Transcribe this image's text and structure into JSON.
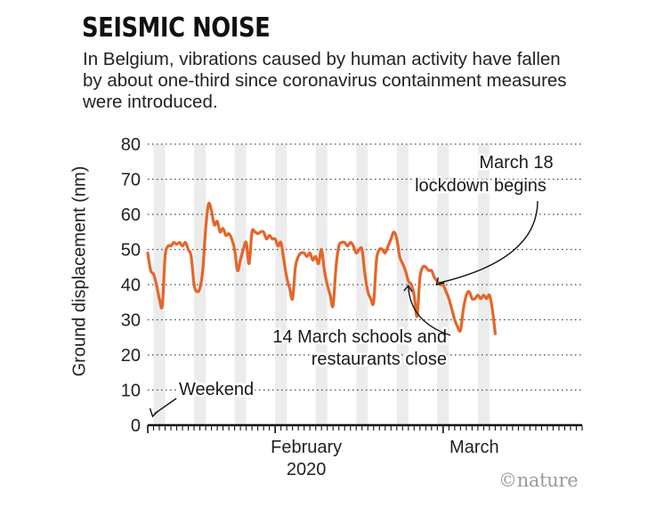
{
  "chart_data": {
    "type": "line",
    "title": "SEISMIC NOISE",
    "subtitle": "In Belgium, vibrations caused by human activity have fallen by about one-third since coronavirus containment measures were introduced.",
    "ylabel": "Ground displacement (nm)",
    "xlabel": "",
    "ylim": [
      0,
      80
    ],
    "yticks": [
      "0",
      "10",
      "20",
      "30",
      "40",
      "50",
      "60",
      "70",
      "80"
    ],
    "xlim": [
      "2020-01-10",
      "2020-03-25"
    ],
    "x_tick_labels": [
      {
        "date": "2020-02-01",
        "label": "February",
        "label2": "2020"
      },
      {
        "date": "2020-03-01",
        "label": "March"
      }
    ],
    "grid": "horizontal dotted",
    "series": [
      {
        "color": "#e4662a",
        "points": [
          [
            "2020-01-10",
            49
          ],
          [
            "2020-01-10T12",
            44
          ],
          [
            "2020-01-11",
            43
          ],
          [
            "2020-01-11T12",
            40
          ],
          [
            "2020-01-12",
            36
          ],
          [
            "2020-01-12T12",
            34
          ],
          [
            "2020-01-13",
            48
          ],
          [
            "2020-01-13T12",
            51
          ],
          [
            "2020-01-14",
            51
          ],
          [
            "2020-01-14T12",
            52
          ],
          [
            "2020-01-15",
            51.5
          ],
          [
            "2020-01-15T12",
            52
          ],
          [
            "2020-01-16",
            51
          ],
          [
            "2020-01-16T12",
            52
          ],
          [
            "2020-01-17",
            50
          ],
          [
            "2020-01-17T12",
            48
          ],
          [
            "2020-01-18",
            40
          ],
          [
            "2020-01-18T12",
            38
          ],
          [
            "2020-01-19",
            39
          ],
          [
            "2020-01-19T12",
            44
          ],
          [
            "2020-01-20",
            56
          ],
          [
            "2020-01-20T12",
            63
          ],
          [
            "2020-01-21",
            61
          ],
          [
            "2020-01-21T12",
            57
          ],
          [
            "2020-01-22",
            58
          ],
          [
            "2020-01-22T12",
            55
          ],
          [
            "2020-01-23",
            56
          ],
          [
            "2020-01-23T12",
            54
          ],
          [
            "2020-01-24",
            54.5
          ],
          [
            "2020-01-24T12",
            53
          ],
          [
            "2020-01-25",
            50
          ],
          [
            "2020-01-25T12",
            44
          ],
          [
            "2020-01-26",
            47
          ],
          [
            "2020-01-26T12",
            50
          ],
          [
            "2020-01-27",
            52
          ],
          [
            "2020-01-27T12",
            46
          ],
          [
            "2020-01-28",
            55
          ],
          [
            "2020-01-28T12",
            55
          ],
          [
            "2020-01-29",
            54.5
          ],
          [
            "2020-01-29T12",
            55
          ],
          [
            "2020-01-30",
            55
          ],
          [
            "2020-01-30T12",
            53
          ],
          [
            "2020-01-31",
            54
          ],
          [
            "2020-01-31T12",
            53
          ],
          [
            "2020-02-01",
            53
          ],
          [
            "2020-02-01T12",
            51
          ],
          [
            "2020-02-02",
            52
          ],
          [
            "2020-02-02T12",
            47
          ],
          [
            "2020-02-03",
            42
          ],
          [
            "2020-02-03T12",
            39
          ],
          [
            "2020-02-04",
            36
          ],
          [
            "2020-02-04T12",
            45
          ],
          [
            "2020-02-05",
            48
          ],
          [
            "2020-02-05T12",
            49
          ],
          [
            "2020-02-06",
            49
          ],
          [
            "2020-02-06T12",
            48
          ],
          [
            "2020-02-07",
            49
          ],
          [
            "2020-02-07T12",
            47
          ],
          [
            "2020-02-08",
            48
          ],
          [
            "2020-02-08T12",
            46
          ],
          [
            "2020-02-09",
            50
          ],
          [
            "2020-02-09T12",
            44
          ],
          [
            "2020-02-10",
            40
          ],
          [
            "2020-02-10T12",
            37
          ],
          [
            "2020-02-11",
            34
          ],
          [
            "2020-02-11T12",
            45
          ],
          [
            "2020-02-12",
            51
          ],
          [
            "2020-02-12T12",
            52
          ],
          [
            "2020-02-13",
            52
          ],
          [
            "2020-02-13T12",
            51
          ],
          [
            "2020-02-14",
            52
          ],
          [
            "2020-02-14T12",
            51
          ],
          [
            "2020-02-15",
            49
          ],
          [
            "2020-02-15T12",
            50
          ],
          [
            "2020-02-16",
            50
          ],
          [
            "2020-02-16T12",
            43
          ],
          [
            "2020-02-17",
            38
          ],
          [
            "2020-02-17T12",
            36
          ],
          [
            "2020-02-18",
            35
          ],
          [
            "2020-02-18T12",
            47
          ],
          [
            "2020-02-19",
            50
          ],
          [
            "2020-02-19T12",
            50
          ],
          [
            "2020-02-20",
            49
          ],
          [
            "2020-02-20T12",
            51
          ],
          [
            "2020-02-21",
            53
          ],
          [
            "2020-02-21T12",
            55
          ],
          [
            "2020-02-22",
            53
          ],
          [
            "2020-02-22T12",
            48
          ],
          [
            "2020-02-23",
            46
          ],
          [
            "2020-02-23T12",
            44
          ],
          [
            "2020-02-24",
            41
          ],
          [
            "2020-02-24T12",
            40
          ],
          [
            "2020-02-25",
            37
          ],
          [
            "2020-02-25T12",
            31
          ],
          [
            "2020-02-26",
            42
          ],
          [
            "2020-02-26T12",
            45
          ],
          [
            "2020-02-27",
            45
          ],
          [
            "2020-02-27T12",
            44
          ],
          [
            "2020-02-28",
            44
          ],
          [
            "2020-02-28T12",
            42
          ],
          [
            "2020-02-29",
            41
          ],
          [
            "2020-02-29T12",
            40
          ],
          [
            "2020-03-01",
            40
          ],
          [
            "2020-03-01T12",
            38
          ],
          [
            "2020-03-02",
            36
          ],
          [
            "2020-03-02T12",
            33
          ],
          [
            "2020-03-03",
            30
          ],
          [
            "2020-03-03T12",
            28
          ],
          [
            "2020-03-04",
            27
          ],
          [
            "2020-03-04T12",
            33
          ],
          [
            "2020-03-05",
            37
          ],
          [
            "2020-03-05T12",
            38
          ],
          [
            "2020-03-06",
            36
          ],
          [
            "2020-03-06T12",
            36
          ],
          [
            "2020-03-07",
            37
          ],
          [
            "2020-03-07T12",
            36
          ],
          [
            "2020-03-08",
            37
          ],
          [
            "2020-03-08T12",
            36
          ],
          [
            "2020-03-09",
            37
          ],
          [
            "2020-03-09T12",
            33
          ],
          [
            "2020-03-10",
            26
          ]
        ]
      }
    ],
    "weekend_bands": [
      [
        "2020-01-11",
        "2020-01-13"
      ],
      [
        "2020-01-18",
        "2020-01-20"
      ],
      [
        "2020-01-25",
        "2020-01-27"
      ],
      [
        "2020-02-01",
        "2020-02-03"
      ],
      [
        "2020-02-08",
        "2020-02-10"
      ],
      [
        "2020-02-15",
        "2020-02-17"
      ],
      [
        "2020-02-22",
        "2020-02-24"
      ],
      [
        "2020-02-29",
        "2020-03-02"
      ],
      [
        "2020-03-07",
        "2020-03-09"
      ]
    ],
    "annotations": [
      {
        "lines": [
          "Weekend"
        ],
        "x": "2020-01-11",
        "y": 3
      },
      {
        "lines": [
          "14 March schools and",
          "restaurants close"
        ],
        "x": "2020-02-24",
        "y": 40
      },
      {
        "lines": [
          "March 18",
          "lockdown begins"
        ],
        "x": "2020-02-29",
        "y": 40
      }
    ]
  },
  "credit": "©nature"
}
